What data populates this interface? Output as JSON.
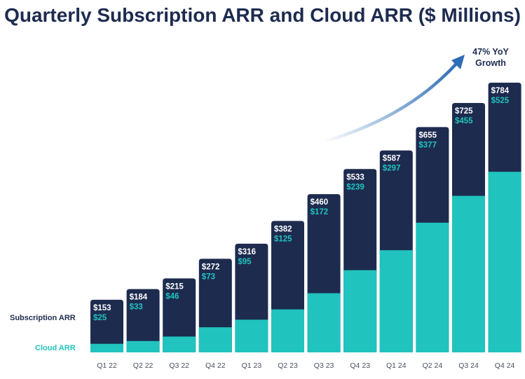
{
  "chart_data": {
    "type": "bar",
    "title": "Quarterly Subscription ARR and Cloud ARR ($ Millions)",
    "categories": [
      "Q1 22",
      "Q2 22",
      "Q3 22",
      "Q4 22",
      "Q1 23",
      "Q2 23",
      "Q3 23",
      "Q4 23",
      "Q1 24",
      "Q2 24",
      "Q3 24",
      "Q4 24"
    ],
    "series": [
      {
        "name": "Subscription ARR",
        "values": [
          153,
          184,
          215,
          272,
          316,
          382,
          460,
          533,
          587,
          655,
          725,
          784
        ],
        "labels": [
          "$153",
          "$184",
          "$215",
          "$272",
          "$316",
          "$382",
          "$460",
          "$533",
          "$587",
          "$655",
          "$725",
          "$784"
        ],
        "color": "#1d2b4f"
      },
      {
        "name": "Cloud ARR",
        "values": [
          25,
          33,
          46,
          73,
          95,
          125,
          172,
          239,
          297,
          377,
          455,
          525
        ],
        "labels": [
          "$25",
          "$33",
          "$46",
          "$73",
          "$95",
          "$125",
          "$172",
          "$239",
          "$297",
          "$377",
          "$455",
          "$525"
        ],
        "color": "#20c3bd"
      }
    ],
    "annotation": {
      "line1": "47% YoY",
      "line2": "Growth"
    },
    "ylim": [
      0,
      784
    ],
    "grid": false,
    "legend_position": "left"
  }
}
